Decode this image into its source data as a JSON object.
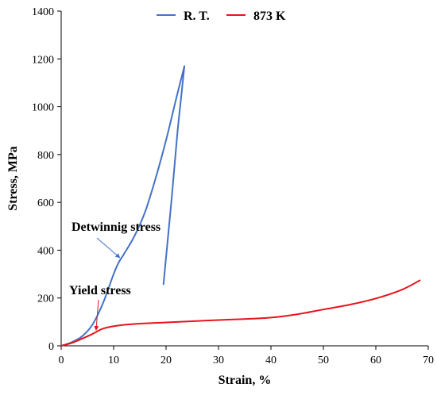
{
  "chart_data": {
    "type": "line",
    "title": "",
    "xlabel": "Strain, %",
    "ylabel": "Stress, MPa",
    "xlim": [
      0,
      70
    ],
    "ylim": [
      0,
      1400
    ],
    "xticks": [
      "0",
      "10",
      "20",
      "30",
      "40",
      "50",
      "60",
      "70"
    ],
    "yticks": [
      "0",
      "200",
      "400",
      "600",
      "800",
      "1000",
      "1200",
      "1400"
    ],
    "grid": false,
    "legend_position": "top-center",
    "series": [
      {
        "name": "R. T.",
        "color": "#4472C4",
        "x": [
          0,
          2,
          4,
          6,
          8,
          10,
          11,
          12,
          14,
          16,
          18,
          20,
          22,
          23.5,
          22.2,
          21,
          19.5
        ],
        "y": [
          0,
          15,
          40,
          90,
          180,
          300,
          350,
          385,
          460,
          560,
          700,
          860,
          1040,
          1170,
          900,
          600,
          255
        ]
      },
      {
        "name": "873 K",
        "color": "#E8141C",
        "x": [
          0,
          2,
          4,
          6,
          7,
          8,
          10,
          12,
          15,
          20,
          25,
          30,
          35,
          40,
          45,
          50,
          55,
          60,
          65,
          68.5
        ],
        "y": [
          0,
          12,
          30,
          50,
          62,
          72,
          82,
          88,
          93,
          98,
          103,
          108,
          112,
          118,
          132,
          152,
          172,
          198,
          235,
          275
        ]
      }
    ],
    "annotations": [
      {
        "text": "Detwinnig stress",
        "x": 11.5,
        "y": 375,
        "arrow_color": "#4472C4"
      },
      {
        "text": "Yield stress",
        "x": 6.5,
        "y": 55,
        "arrow_color": "#E8141C"
      }
    ]
  }
}
